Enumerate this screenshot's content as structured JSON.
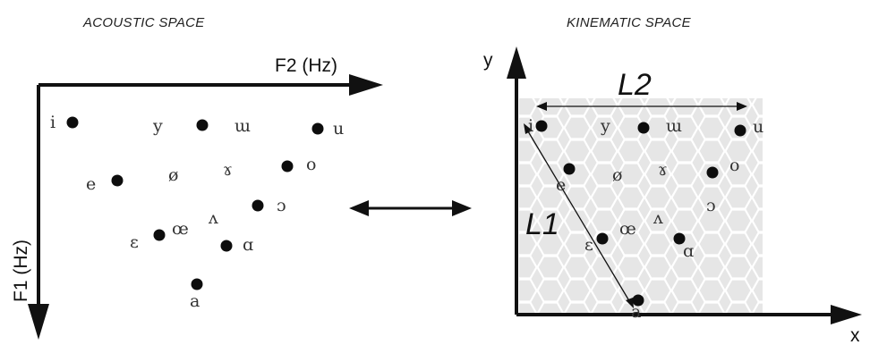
{
  "titles": {
    "left": "ACOUSTIC  SPACE",
    "right": "KINEMATIC SPACE"
  },
  "acoustic": {
    "x_axis_label": "F2 (Hz)",
    "y_axis_label": "F1  (Hz)",
    "vowels": [
      "i",
      "y",
      "ɯ",
      "u",
      "e",
      "ø",
      "ɤ",
      "o",
      "ɔ",
      "ɛ",
      "œ",
      "ʌ",
      "ɑ",
      "a"
    ]
  },
  "kinematic": {
    "x_axis_label": "x",
    "y_axis_label": "y",
    "length_label_top": "L2",
    "length_label_diagonal": "L1",
    "vowels": [
      "i",
      "y",
      "ɯ",
      "u",
      "e",
      "ø",
      "ɤ",
      "o",
      "ɔ",
      "ɛ",
      "œ",
      "ʌ",
      "ɑ",
      "a"
    ]
  },
  "colors": {
    "ink": "#111111",
    "dot": "#0d0d0d",
    "hex_fill": "#e4e4e4",
    "hex_stroke": "#ffffff"
  }
}
